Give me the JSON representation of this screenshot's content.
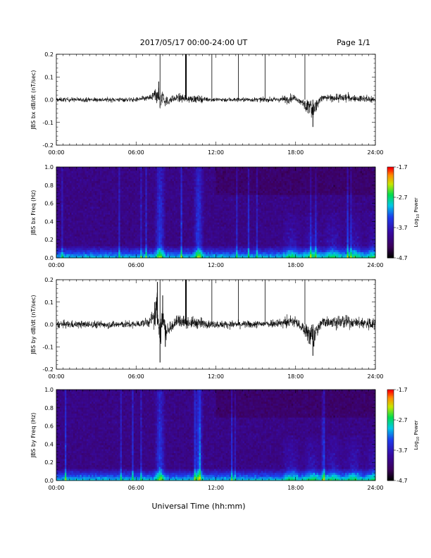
{
  "header": {
    "date_range": "2017/05/17  00:00-24:00 UT",
    "page": "Page 1/1"
  },
  "footer": {
    "xlabel": "Universal Time (hh:mm)"
  },
  "colors": {
    "line": "#000000",
    "background": "#ffffff",
    "frame": "#000000"
  },
  "colorbar": {
    "label": "Log",
    "label_sub": "10",
    "label_suffix": " Power",
    "ticks": [
      "-1.7",
      "-2.7",
      "-3.7",
      "-4.7"
    ],
    "range": [
      -4.7,
      -1.7
    ]
  },
  "chart_data": [
    {
      "type": "line",
      "ylabel": "JBS bx dB/dt (nT/sec)",
      "xlim": [
        0,
        24
      ],
      "ylim": [
        -0.2,
        0.2
      ],
      "xtick_labels": [
        "00:00",
        "06:00",
        "12:00",
        "18:00",
        "24:00"
      ],
      "ytick_labels": [
        "-0.2",
        "-0.1",
        "0.0",
        "0.1",
        "0.2"
      ],
      "baseline_noise": 0.012,
      "spikes_at_hours": [
        7.8,
        9.75,
        11.7,
        13.7,
        15.7,
        18.7
      ],
      "series": [
        {
          "x": [
            0,
            6,
            7.0,
            7.5,
            7.7,
            7.8,
            8.0,
            8.2,
            9.0,
            10.0,
            12,
            15,
            17,
            18,
            19.3,
            20,
            22,
            24
          ],
          "y": [
            0.0,
            0.0,
            0.02,
            0.05,
            0.08,
            -0.05,
            0.06,
            -0.03,
            0.02,
            0.01,
            0.0,
            0.0,
            0.0,
            0.02,
            -0.12,
            0.02,
            0.02,
            0.0
          ]
        }
      ]
    },
    {
      "type": "heatmap",
      "ylabel": "JBS bx Freq (Hz)",
      "xlim": [
        0,
        24
      ],
      "ylim": [
        0,
        1.0
      ],
      "xtick_labels": [
        "00:00",
        "06:00",
        "12:00",
        "18:00",
        "24:00"
      ],
      "ytick_labels": [
        "0.0",
        "0.2",
        "0.4",
        "0.6",
        "0.8",
        "1.0"
      ],
      "value_range": [
        -4.7,
        -1.7
      ],
      "bright_bands_at_hours": [
        7.8,
        10.7
      ]
    },
    {
      "type": "line",
      "ylabel": "JBS by dB/dt (nT/sec)",
      "xlim": [
        0,
        24
      ],
      "ylim": [
        -0.2,
        0.2
      ],
      "xtick_labels": [
        "00:00",
        "06:00",
        "12:00",
        "18:00",
        "24:00"
      ],
      "ytick_labels": [
        "-0.2",
        "-0.1",
        "0.0",
        "0.1",
        "0.2"
      ],
      "baseline_noise": 0.02,
      "spikes_at_hours": [
        7.8,
        9.75,
        11.7,
        13.7,
        15.7,
        18.7
      ],
      "series": [
        {
          "x": [
            0,
            6,
            7.0,
            7.4,
            7.6,
            7.8,
            8.0,
            8.2,
            9.0,
            10.0,
            12,
            15,
            17,
            18,
            19.3,
            20,
            22,
            24
          ],
          "y": [
            0.0,
            0.0,
            0.03,
            0.1,
            0.19,
            -0.17,
            0.13,
            -0.1,
            0.04,
            0.02,
            0.0,
            0.0,
            0.02,
            0.03,
            -0.14,
            0.03,
            0.03,
            0.0
          ]
        }
      ]
    },
    {
      "type": "heatmap",
      "ylabel": "JBS by Freq (Hz)",
      "xlim": [
        0,
        24
      ],
      "ylim": [
        0,
        1.0
      ],
      "xtick_labels": [
        "00:00",
        "06:00",
        "12:00",
        "18:00",
        "24:00"
      ],
      "ytick_labels": [
        "0.0",
        "0.2",
        "0.4",
        "0.6",
        "0.8",
        "1.0"
      ],
      "value_range": [
        -4.7,
        -1.7
      ],
      "bright_bands_at_hours": [
        7.8,
        10.7
      ]
    }
  ]
}
